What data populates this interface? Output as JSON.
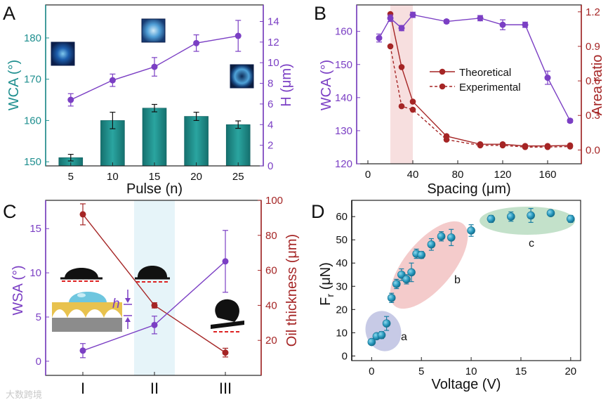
{
  "chart_data": [
    {
      "panel": "A",
      "type": "bar+line",
      "x_axis": {
        "label": "Pulse (n)",
        "ticks": [
          5,
          10,
          15,
          20,
          25
        ],
        "range": [
          2,
          28
        ]
      },
      "y_left": {
        "label": "WCA (°)",
        "range": [
          149,
          188
        ],
        "ticks": [
          150,
          160,
          170,
          180
        ],
        "color": "#1f8f8f"
      },
      "y_right": {
        "label": "H (μm)",
        "range": [
          0,
          15.6
        ],
        "ticks": [
          0,
          2,
          4,
          6,
          8,
          10,
          12,
          14
        ],
        "color": "#7b3fc4"
      },
      "bars": {
        "x": [
          5,
          10,
          15,
          20,
          25
        ],
        "values": [
          151,
          160,
          163,
          161,
          159
        ],
        "err": [
          0.8,
          2,
          0.9,
          1,
          0.9
        ]
      },
      "line": {
        "x": [
          5,
          10,
          15,
          20,
          25
        ],
        "values": [
          6.4,
          8.3,
          9.6,
          11.9,
          12.6
        ],
        "err": [
          0.6,
          0.6,
          0.9,
          0.8,
          1.5
        ]
      }
    },
    {
      "panel": "B",
      "type": "line",
      "x_axis": {
        "label": "Spacing (μm)",
        "ticks": [
          0,
          40,
          80,
          120,
          160
        ],
        "range": [
          -10,
          190
        ]
      },
      "y_left": {
        "label": "WCA (°)",
        "range": [
          120,
          168
        ],
        "ticks": [
          120,
          130,
          140,
          150,
          160
        ],
        "color": "#7b3fc4"
      },
      "y_right": {
        "label": "Area ratio",
        "range": [
          -0.12,
          1.26
        ],
        "ticks": [
          0.0,
          0.3,
          0.6,
          0.9,
          1.2
        ],
        "color": "#a52525"
      },
      "shaded_band": [
        20,
        40
      ],
      "legend": [
        "Theoretical",
        "Experimental"
      ],
      "series": [
        {
          "name": "WCA",
          "x": [
            10,
            20,
            30,
            40,
            70,
            100,
            120,
            140,
            160,
            180
          ],
          "values": [
            158,
            164,
            161,
            165,
            163,
            164,
            162,
            162,
            146,
            133
          ],
          "err": [
            1.2,
            1,
            0.8,
            0.8,
            0.5,
            0.8,
            1.5,
            0.8,
            2,
            0.5
          ]
        },
        {
          "name": "Theoretical",
          "x": [
            20,
            30,
            40,
            70,
            100,
            120,
            140,
            160,
            180
          ],
          "values": [
            1.18,
            0.72,
            0.42,
            0.12,
            0.05,
            0.05,
            0.035,
            0.035,
            0.04
          ]
        },
        {
          "name": "Experimental",
          "x": [
            20,
            30,
            40,
            70,
            100,
            120,
            140,
            160,
            180
          ],
          "values": [
            0.9,
            0.38,
            0.35,
            0.09,
            0.04,
            0.04,
            0.025,
            0.025,
            0.03
          ]
        }
      ]
    },
    {
      "panel": "C",
      "type": "line",
      "x_axis": {
        "ticks": [
          "I",
          "II",
          "III"
        ]
      },
      "y_left": {
        "label": "WSA (°)",
        "range": [
          -1.6,
          18.2
        ],
        "ticks": [
          0,
          5,
          10,
          15
        ],
        "color": "#7b3fc4"
      },
      "y_right": {
        "label": "Oil thickness (μm)",
        "range": [
          0,
          100
        ],
        "ticks": [
          20,
          40,
          60,
          80,
          100
        ],
        "color": "#a52525"
      },
      "h_label": "h",
      "series": [
        {
          "name": "WSA",
          "values": [
            1.2,
            4.1,
            11.3
          ],
          "err": [
            0.8,
            1,
            3.5
          ]
        },
        {
          "name": "Oil thickness",
          "values": [
            92,
            40,
            13
          ],
          "err": [
            6,
            1.5,
            2.5
          ]
        }
      ]
    },
    {
      "panel": "D",
      "type": "scatter",
      "x_axis": {
        "label": "Voltage (V)",
        "ticks": [
          0,
          5,
          10,
          15,
          20
        ],
        "range": [
          -2,
          21
        ]
      },
      "y_axis": {
        "label": "Fr (μN)",
        "label_main": "F",
        "label_sub": "r",
        "label_unit": " (μN)",
        "range": [
          -2,
          67
        ],
        "ticks": [
          0,
          10,
          20,
          30,
          40,
          50,
          60
        ]
      },
      "groups": [
        "a",
        "b",
        "c"
      ],
      "points": {
        "x": [
          0,
          0.5,
          1,
          1.5,
          2,
          2.5,
          3,
          3.5,
          4,
          4.5,
          5,
          6,
          7,
          8,
          10,
          12,
          14,
          16,
          18,
          20
        ],
        "y": [
          6,
          8.5,
          9,
          14,
          25,
          31,
          35,
          33,
          36,
          44,
          43.5,
          48,
          51.5,
          51,
          54,
          59,
          60,
          60.5,
          61.5,
          59
        ],
        "err": [
          1,
          1.2,
          1.5,
          3,
          2,
          2,
          2.5,
          2,
          4,
          2,
          1.5,
          2.5,
          2,
          3.5,
          2.5,
          1.5,
          2,
          3,
          1,
          1.5
        ]
      }
    }
  ],
  "panel_labels": [
    "A",
    "B",
    "C",
    "D"
  ],
  "watermark": "大数跨境"
}
